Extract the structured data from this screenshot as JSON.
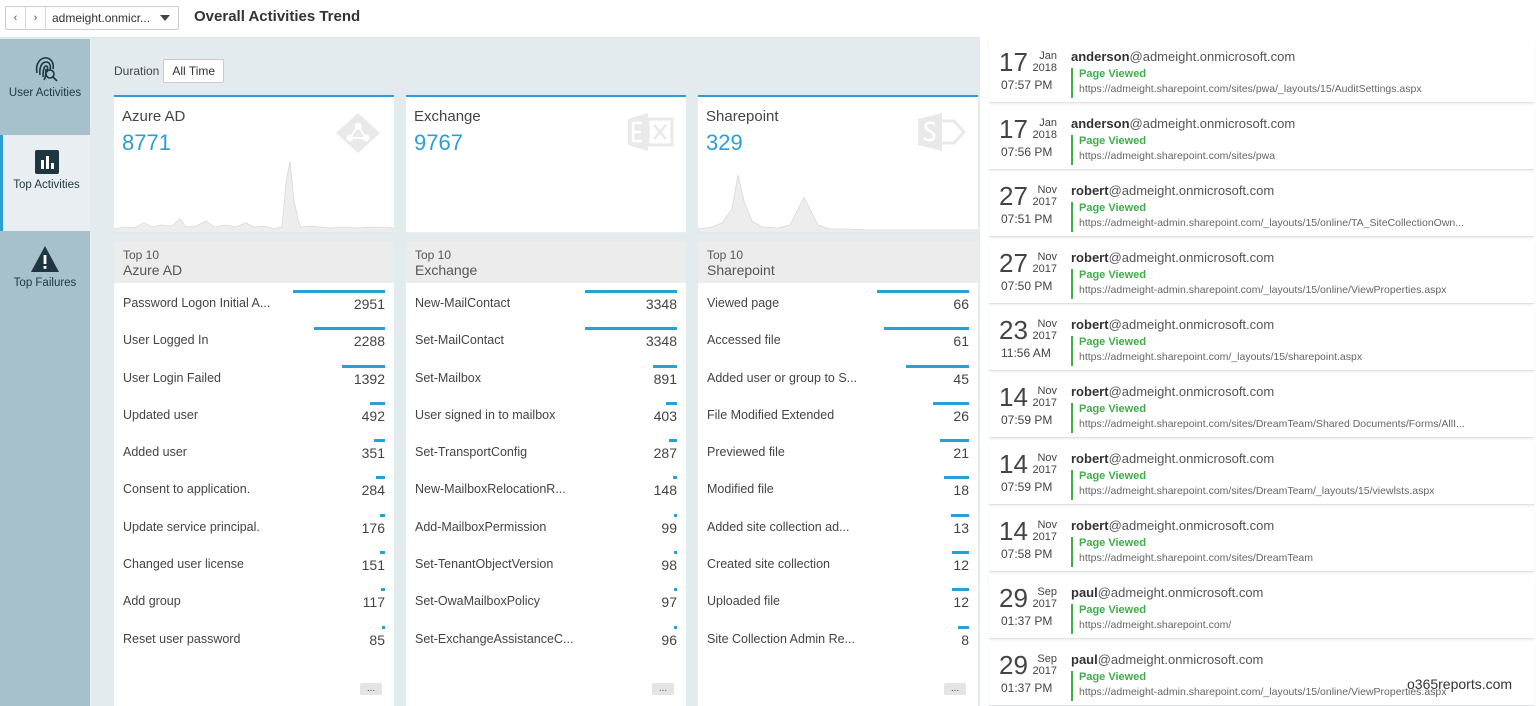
{
  "header": {
    "back_icon": "chevron-left-icon",
    "forward_icon": "chevron-right-icon",
    "tenant": "admeight.onmicr...",
    "title": "Overall Activities Trend"
  },
  "sidebar": {
    "items": [
      {
        "label": "User Activities",
        "icon": "fingerprint-icon",
        "active": false
      },
      {
        "label": "Top Activities",
        "icon": "bar-chart-icon",
        "active": true
      },
      {
        "label": "Top Failures",
        "icon": "warning-icon",
        "active": false
      }
    ]
  },
  "duration": {
    "label": "Duration",
    "value": "All Time"
  },
  "accent_color": "#2a9fd6",
  "cards": [
    {
      "name": "Azure AD",
      "count": "8771",
      "logo": "azure-ad-icon"
    },
    {
      "name": "Exchange",
      "count": "9767",
      "logo": "exchange-icon"
    },
    {
      "name": "Sharepoint",
      "count": "329",
      "logo": "sharepoint-icon"
    }
  ],
  "toplists": [
    {
      "title_prefix": "Top 10",
      "name": "Azure AD",
      "more": "...",
      "rows": [
        {
          "label": "Password Logon Initial A...",
          "value": "2951"
        },
        {
          "label": "User Logged In",
          "value": "2288"
        },
        {
          "label": "User Login Failed",
          "value": "1392"
        },
        {
          "label": "Updated user",
          "value": "492"
        },
        {
          "label": "Added user",
          "value": "351"
        },
        {
          "label": "Consent to application.",
          "value": "284"
        },
        {
          "label": "Update service principal.",
          "value": "176"
        },
        {
          "label": "Changed user license",
          "value": "151"
        },
        {
          "label": "Add group",
          "value": "117"
        },
        {
          "label": "Reset user password",
          "value": "85"
        }
      ]
    },
    {
      "title_prefix": "Top 10",
      "name": "Exchange",
      "more": "...",
      "rows": [
        {
          "label": "New-MailContact",
          "value": "3348"
        },
        {
          "label": "Set-MailContact",
          "value": "3348"
        },
        {
          "label": "Set-Mailbox",
          "value": "891"
        },
        {
          "label": "User signed in to mailbox",
          "value": "403"
        },
        {
          "label": "Set-TransportConfig",
          "value": "287"
        },
        {
          "label": "New-MailboxRelocationR...",
          "value": "148"
        },
        {
          "label": "Add-MailboxPermission",
          "value": "99"
        },
        {
          "label": "Set-TenantObjectVersion",
          "value": "98"
        },
        {
          "label": "Set-OwaMailboxPolicy",
          "value": "97"
        },
        {
          "label": "Set-ExchangeAssistanceC...",
          "value": "96"
        }
      ]
    },
    {
      "title_prefix": "Top 10",
      "name": "Sharepoint",
      "more": "...",
      "rows": [
        {
          "label": "Viewed page",
          "value": "66"
        },
        {
          "label": "Accessed file",
          "value": "61"
        },
        {
          "label": "Added user or group to S...",
          "value": "45"
        },
        {
          "label": "File Modified Extended",
          "value": "26"
        },
        {
          "label": "Previewed file",
          "value": "21"
        },
        {
          "label": "Modified file",
          "value": "18"
        },
        {
          "label": "Added site collection ad...",
          "value": "13"
        },
        {
          "label": "Created site collection",
          "value": "12"
        },
        {
          "label": "Uploaded file",
          "value": "12"
        },
        {
          "label": "Site Collection Admin Re...",
          "value": "8"
        }
      ]
    }
  ],
  "feed": [
    {
      "day": "17",
      "month": "Jan",
      "year": "2018",
      "time": "07:57 PM",
      "user": "anderson",
      "domain": "@admeight.onmicrosoft.com",
      "action": "Page Viewed",
      "url": "https://admeight.sharepoint.com/sites/pwa/_layouts/15/AuditSettings.aspx"
    },
    {
      "day": "17",
      "month": "Jan",
      "year": "2018",
      "time": "07:56 PM",
      "user": "anderson",
      "domain": "@admeight.onmicrosoft.com",
      "action": "Page Viewed",
      "url": "https://admeight.sharepoint.com/sites/pwa"
    },
    {
      "day": "27",
      "month": "Nov",
      "year": "2017",
      "time": "07:51 PM",
      "user": "robert",
      "domain": "@admeight.onmicrosoft.com",
      "action": "Page Viewed",
      "url": "https://admeight-admin.sharepoint.com/_layouts/15/online/TA_SiteCollectionOwn..."
    },
    {
      "day": "27",
      "month": "Nov",
      "year": "2017",
      "time": "07:50 PM",
      "user": "robert",
      "domain": "@admeight.onmicrosoft.com",
      "action": "Page Viewed",
      "url": "https://admeight-admin.sharepoint.com/_layouts/15/online/ViewProperties.aspx"
    },
    {
      "day": "23",
      "month": "Nov",
      "year": "2017",
      "time": "11:56 AM",
      "user": "robert",
      "domain": "@admeight.onmicrosoft.com",
      "action": "Page Viewed",
      "url": "https://admeight.sharepoint.com/_layouts/15/sharepoint.aspx"
    },
    {
      "day": "14",
      "month": "Nov",
      "year": "2017",
      "time": "07:59 PM",
      "user": "robert",
      "domain": "@admeight.onmicrosoft.com",
      "action": "Page Viewed",
      "url": "https://admeight.sharepoint.com/sites/DreamTeam/Shared Documents/Forms/AllI..."
    },
    {
      "day": "14",
      "month": "Nov",
      "year": "2017",
      "time": "07:59 PM",
      "user": "robert",
      "domain": "@admeight.onmicrosoft.com",
      "action": "Page Viewed",
      "url": "https://admeight.sharepoint.com/sites/DreamTeam/_layouts/15/viewlsts.aspx"
    },
    {
      "day": "14",
      "month": "Nov",
      "year": "2017",
      "time": "07:58 PM",
      "user": "robert",
      "domain": "@admeight.onmicrosoft.com",
      "action": "Page Viewed",
      "url": "https://admeight.sharepoint.com/sites/DreamTeam"
    },
    {
      "day": "29",
      "month": "Sep",
      "year": "2017",
      "time": "01:37 PM",
      "user": "paul",
      "domain": "@admeight.onmicrosoft.com",
      "action": "Page Viewed",
      "url": "https://admeight.sharepoint.com/"
    },
    {
      "day": "29",
      "month": "Sep",
      "year": "2017",
      "time": "01:37 PM",
      "user": "paul",
      "domain": "@admeight.onmicrosoft.com",
      "action": "Page Viewed",
      "url": "https://admeight-admin.sharepoint.com/_layouts/15/online/ViewProperties.aspx"
    }
  ],
  "watermark": "o365reports.com"
}
